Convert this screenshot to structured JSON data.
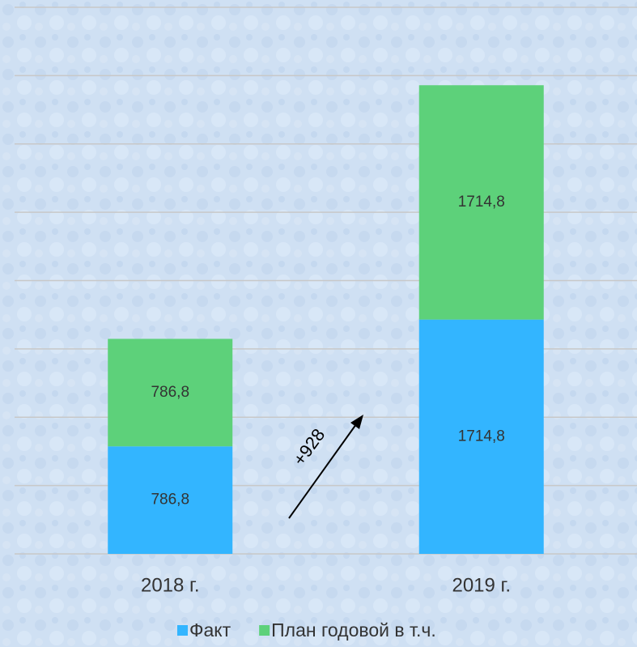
{
  "chart_data": {
    "type": "stacked_bar",
    "categories": [
      "2018 г.",
      "2019 г."
    ],
    "series": [
      {
        "name": "Факт",
        "color": "#33b5ff",
        "values": [
          786.8,
          1714.8
        ],
        "value_labels": [
          "786,8",
          "1714,8"
        ]
      },
      {
        "name": "План годовой в т.ч.",
        "color": "#5dd17a",
        "values": [
          786.8,
          1714.8
        ],
        "value_labels": [
          "786,8",
          "1714,8"
        ]
      }
    ],
    "ylim": [
      0,
      4000
    ],
    "yticks": [
      0,
      500,
      1000,
      1500,
      2000,
      2500,
      3000,
      3500,
      4000
    ],
    "grid": true,
    "annotation": "+928",
    "legend": "bottom"
  }
}
